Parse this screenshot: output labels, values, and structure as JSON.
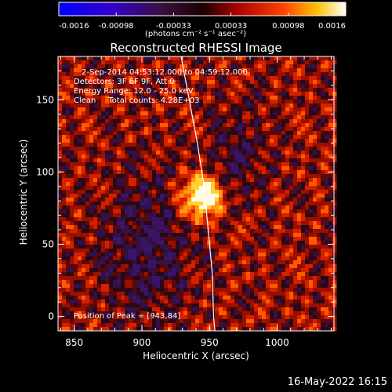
{
  "colorbar": {
    "tick_labels": [
      "-0.0016",
      "-0.00098",
      "-0.00033",
      "0.00033",
      "0.00098",
      "0.0016"
    ],
    "unit_label": "(photons cm⁻² s⁻¹ asec⁻²)"
  },
  "image": {
    "title": "Reconstructed RHESSI Image",
    "info_lines": [
      "2-Sep-2014 04:53:12.000 to 04:59:12.000",
      "Detectors: 3F 6F 9F, Att 0",
      "Energy Range: 12.0 - 25.0 keV",
      "Clean     Total counts: 4.28E+03"
    ],
    "peak_label": "Position of Peak = [943,84]"
  },
  "footer": {
    "date": "16-May-2022 16:15"
  },
  "chart_data": {
    "type": "heatmap",
    "title": "Reconstructed RHESSI Image",
    "xlabel": "Heliocentric X (arcsec)",
    "ylabel": "Heliocentric Y (arcsec)",
    "xlim": [
      838,
      1042
    ],
    "ylim": [
      -10,
      180
    ],
    "x_ticks": [
      850,
      900,
      950,
      1000
    ],
    "y_ticks": [
      0,
      50,
      100,
      150
    ],
    "x_tick_labels": [
      "850",
      "900",
      "950",
      "1000"
    ],
    "y_tick_labels": [
      "0",
      "50",
      "100",
      "150"
    ],
    "colorbar_range": [
      -0.0016,
      0.0016
    ],
    "peak": {
      "x": 943,
      "y": 84
    },
    "limb_curve": [
      [
        929,
        180
      ],
      [
        935,
        150
      ],
      [
        941,
        120
      ],
      [
        946,
        90
      ],
      [
        949,
        60
      ],
      [
        952,
        30
      ],
      [
        953,
        0
      ],
      [
        954,
        -10
      ]
    ]
  },
  "colors": {
    "background": "#000000",
    "text": "#ffffff"
  }
}
